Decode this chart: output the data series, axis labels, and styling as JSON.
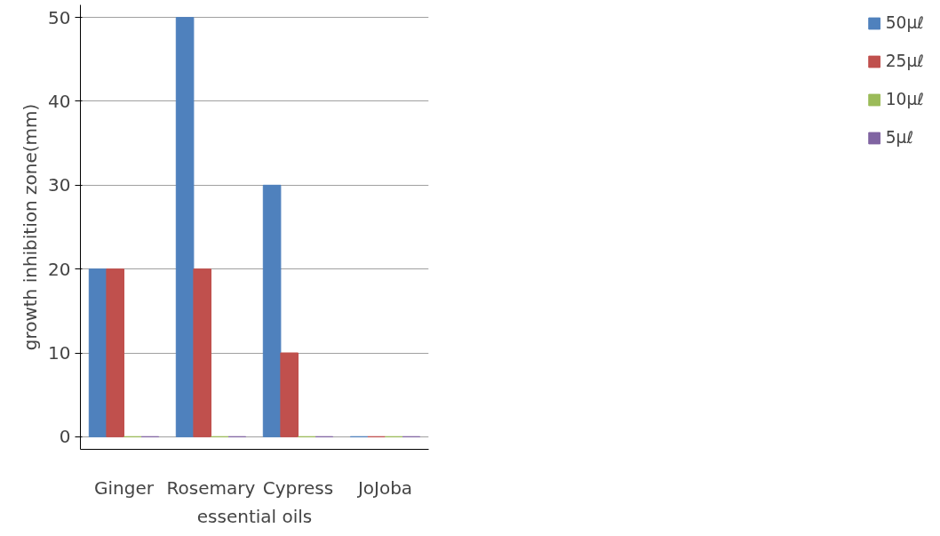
{
  "chart_data": {
    "type": "bar",
    "xlabel": "essential oils",
    "ylabel": "growth inhibition zone(mm)",
    "categories": [
      "Ginger",
      "Rosemary",
      "Cypress",
      "JoJoba"
    ],
    "series": [
      {
        "name": "50μℓ",
        "color": "#4f81bd",
        "values": [
          20,
          50,
          30,
          0
        ]
      },
      {
        "name": "25μℓ",
        "color": "#c0504d",
        "values": [
          20,
          20,
          10,
          0
        ]
      },
      {
        "name": "10μℓ",
        "color": "#9bbb59",
        "values": [
          0,
          0,
          0,
          0
        ]
      },
      {
        "name": "5μℓ",
        "color": "#8064a2",
        "values": [
          0,
          0,
          0,
          0
        ]
      }
    ],
    "ylim": [
      0,
      50
    ],
    "yticks": [
      0,
      10,
      20,
      30,
      40,
      50
    ],
    "grid": "y",
    "legend": "right"
  }
}
